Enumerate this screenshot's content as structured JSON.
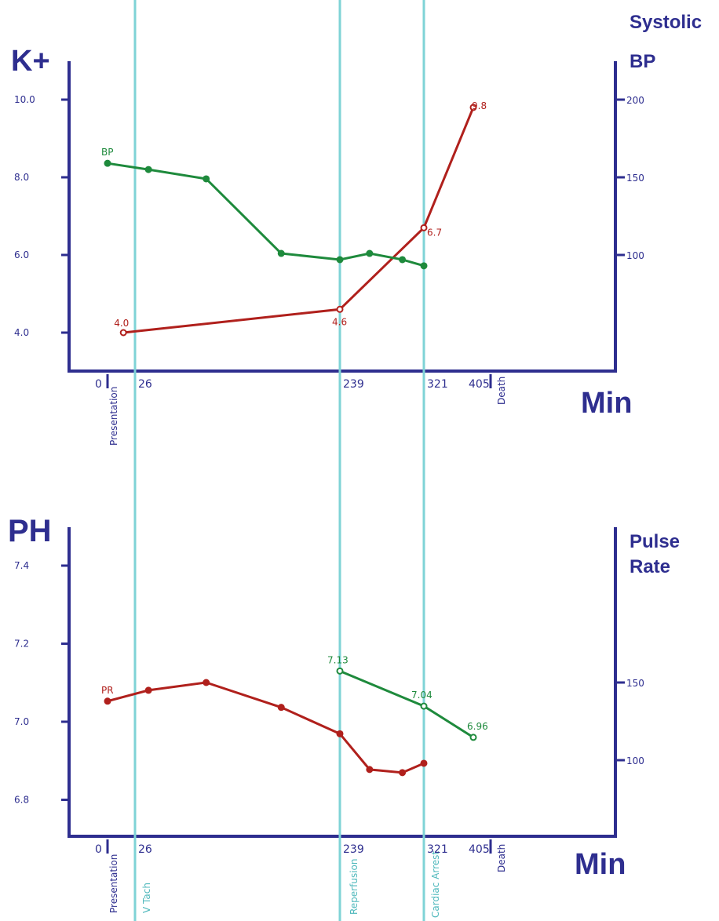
{
  "colors": {
    "axis": "#2e2e8f",
    "event_line": "#7fd3d6",
    "red_series": "#b0201c",
    "green_series": "#1e8a3c",
    "event_label_teal": "#4fb8bc"
  },
  "top_panel": {
    "left_axis_title": "K+",
    "right_axis_title_line1": "Systolic",
    "right_axis_title_line2": "BP",
    "x_axis_title": "Min"
  },
  "bottom_panel": {
    "left_axis_title": "PH",
    "right_axis_title_line1": "Pulse",
    "right_axis_title_line2": "Rate",
    "x_axis_title": "Min"
  },
  "events": {
    "presentation": "Presentation",
    "v_tach": "V Tach",
    "reperfusion": "Reperfusion",
    "cardiac_arrest": "Cardiac Arrest",
    "death": "Death"
  },
  "chart_data": [
    {
      "type": "line",
      "panel": "top",
      "x_ticks": [
        0,
        26,
        239,
        321,
        405
      ],
      "x_tick_labels": [
        "0",
        "26",
        "239",
        "321",
        "405"
      ],
      "x_event_lines_at": [
        26,
        239,
        321
      ],
      "y_left": {
        "title": "K+",
        "ticks": [
          4.0,
          6.0,
          8.0,
          10.0
        ],
        "tick_labels": [
          "4.0",
          "6.0",
          "8.0",
          "10.0"
        ],
        "range": [
          3.0,
          10.0
        ]
      },
      "y_right": {
        "title": "Systolic BP",
        "ticks": [
          100,
          150,
          200
        ],
        "tick_labels": [
          "100",
          "150",
          "200"
        ]
      },
      "series": [
        {
          "name": "K+",
          "axis": "left",
          "color": "#b0201c",
          "marker": "open",
          "x": [
            15,
            239,
            321,
            405
          ],
          "y": [
            4.0,
            4.6,
            6.7,
            9.8
          ],
          "labels": [
            "4.0",
            "4.6",
            "6.7",
            "9.8"
          ]
        },
        {
          "name": "BP",
          "axis": "right",
          "color": "#1e8a3c",
          "marker": "filled",
          "x": [
            0,
            40,
            100,
            178,
            239,
            268,
            300,
            321
          ],
          "y": [
            159,
            155,
            149,
            101,
            97,
            101,
            97,
            93
          ]
        }
      ]
    },
    {
      "type": "line",
      "panel": "bottom",
      "x_ticks": [
        0,
        26,
        239,
        321,
        405
      ],
      "x_tick_labels": [
        "0",
        "26",
        "239",
        "321",
        "405"
      ],
      "x_event_lines_at": [
        26,
        239,
        321
      ],
      "y_left": {
        "title": "PH",
        "ticks": [
          6.8,
          7.0,
          7.2,
          7.4
        ],
        "tick_labels": [
          "6.8",
          "7.0",
          "7.2",
          "7.4"
        ],
        "range": [
          6.69,
          7.46
        ]
      },
      "y_right": {
        "title": "Pulse Rate",
        "ticks": [
          100,
          150
        ],
        "tick_labels": [
          "100",
          "150"
        ]
      },
      "series": [
        {
          "name": "PR",
          "axis": "right",
          "color": "#b0201c",
          "marker": "filled",
          "x": [
            0,
            40,
            100,
            178,
            239,
            268,
            300,
            321
          ],
          "y": [
            138,
            145,
            150,
            134,
            117,
            94,
            92,
            98
          ]
        },
        {
          "name": "PH",
          "axis": "left",
          "color": "#1e8a3c",
          "marker": "open",
          "x": [
            239,
            321,
            405
          ],
          "y": [
            7.13,
            7.04,
            6.96
          ],
          "labels": [
            "7.13",
            "7.04",
            "6.96"
          ]
        }
      ]
    }
  ]
}
